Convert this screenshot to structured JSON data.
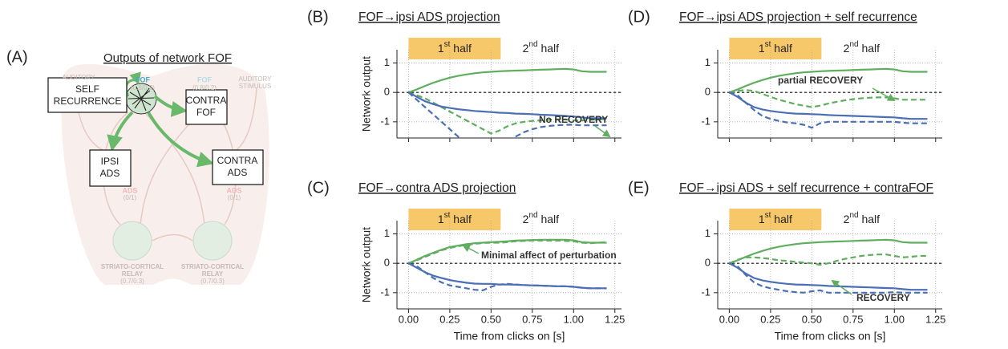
{
  "diagram": {
    "panel_label": "(A)",
    "title": "Outputs of network FOF",
    "boxes": [
      "SELF",
      "RECURRENCE",
      "CONTRA",
      "FOF",
      "IPSI",
      "ADS",
      "CONTRA",
      "ADS"
    ],
    "faded_labels": [
      "FOF",
      "(0.8/0.2)",
      "FOF",
      "(0.8/0.2)",
      "AUDITORY",
      "AUDITORY",
      "STIMULUS",
      "ADS",
      "(0/1)",
      "ADS",
      "(0/1)",
      "STRIATO-CORTICAL",
      "RELAY",
      "(0.7/0.3)",
      "STRIATO-CORTICAL",
      "RELAY",
      "(0.7/0.3)"
    ]
  },
  "chart_data": [
    {
      "type": "line",
      "panel_label": "(B)",
      "title": "FOF→ipsi ADS projection",
      "ylabel": "Network output",
      "first_half": {
        "number": "1",
        "suffix": "st",
        "word": " half"
      },
      "second_half": {
        "number": "2",
        "suffix": "nd",
        "word": " half"
      },
      "half_split": 0.5,
      "annotation": "No RECOVERY",
      "show_xtick_labels": false,
      "zero_line": true,
      "grid": true,
      "xlim": [
        -0.07,
        1.29
      ],
      "ylim": [
        -1.55,
        1.45
      ],
      "xticks": [
        {
          "value": 0,
          "label": "0.00"
        },
        {
          "value": 0.25,
          "label": "0.25"
        },
        {
          "value": 0.5,
          "label": "0.50"
        },
        {
          "value": 0.75,
          "label": "0.75"
        },
        {
          "value": 1,
          "label": "1.00"
        },
        {
          "value": 1.25,
          "label": "1.25"
        }
      ],
      "yticks": [
        -1,
        0,
        1
      ],
      "x": [
        0,
        0.05,
        0.1,
        0.15,
        0.2,
        0.25,
        0.3,
        0.35,
        0.4,
        0.45,
        0.5,
        0.55,
        0.6,
        0.65,
        0.7,
        0.75,
        0.8,
        0.85,
        0.9,
        0.95,
        1,
        1.05,
        1.1,
        1.15,
        1.2
      ],
      "series": [
        {
          "color": "#5fae5f",
          "dash": false,
          "values": [
            0,
            0.1,
            0.22,
            0.33,
            0.42,
            0.5,
            0.56,
            0.61,
            0.65,
            0.68,
            0.7,
            0.72,
            0.73,
            0.74,
            0.75,
            0.76,
            0.77,
            0.78,
            0.79,
            0.8,
            0.78,
            0.72,
            0.7,
            0.7,
            0.7
          ]
        },
        {
          "color": "#5fae5f",
          "dash": true,
          "values": [
            0,
            -0.1,
            -0.2,
            -0.35,
            -0.5,
            -0.65,
            -0.8,
            -0.95,
            -1.1,
            -1.25,
            -1.4,
            -1.3,
            -1.15,
            -1.05,
            -1.0,
            -0.97,
            -0.95,
            -0.93,
            -0.92,
            -0.92,
            -0.95,
            -0.95,
            -0.93,
            -0.92,
            -0.9
          ]
        },
        {
          "color": "#4a6fb5",
          "dash": false,
          "values": [
            0,
            -0.15,
            -0.3,
            -0.4,
            -0.48,
            -0.53,
            -0.57,
            -0.6,
            -0.63,
            -0.65,
            -0.67,
            -0.69,
            -0.7,
            -0.72,
            -0.73,
            -0.74,
            -0.76,
            -0.77,
            -0.78,
            -0.8,
            -0.82,
            -0.85,
            -0.88,
            -0.88,
            -0.88
          ]
        },
        {
          "color": "#4a6fb5",
          "dash": true,
          "values": [
            0,
            -0.25,
            -0.5,
            -0.75,
            -1.0,
            -1.25,
            -1.5,
            -1.7,
            -1.9,
            -2.0,
            -2.0,
            -1.9,
            -1.7,
            -1.5,
            -1.35,
            -1.25,
            -1.18,
            -1.14,
            -1.12,
            -1.1,
            -1.1,
            -1.12,
            -1.12,
            -1.12,
            -1.12
          ]
        }
      ]
    },
    {
      "type": "line",
      "panel_label": "(C)",
      "title": "FOF→contra ADS projection",
      "ylabel": "Network output",
      "xlabel": "Time from clicks on [s]",
      "first_half": {
        "number": "1",
        "suffix": "st",
        "word": " half"
      },
      "second_half": {
        "number": "2",
        "suffix": "nd",
        "word": " half"
      },
      "half_split": 0.5,
      "annotation": "Minimal affect of perturbation",
      "show_xtick_labels": true,
      "zero_line": true,
      "grid": true,
      "xlim": [
        -0.07,
        1.29
      ],
      "ylim": [
        -1.55,
        1.45
      ],
      "xticks": [
        {
          "value": 0,
          "label": "0.00"
        },
        {
          "value": 0.25,
          "label": "0.25"
        },
        {
          "value": 0.5,
          "label": "0.50"
        },
        {
          "value": 0.75,
          "label": "0.75"
        },
        {
          "value": 1,
          "label": "1.00"
        },
        {
          "value": 1.25,
          "label": "1.25"
        }
      ],
      "yticks": [
        -1,
        0,
        1
      ],
      "x": [
        0,
        0.05,
        0.1,
        0.15,
        0.2,
        0.25,
        0.3,
        0.35,
        0.4,
        0.45,
        0.5,
        0.55,
        0.6,
        0.65,
        0.7,
        0.75,
        0.8,
        0.85,
        0.9,
        0.95,
        1,
        1.05,
        1.1,
        1.15,
        1.2
      ],
      "series": [
        {
          "color": "#5fae5f",
          "dash": false,
          "values": [
            0,
            0.12,
            0.25,
            0.36,
            0.46,
            0.55,
            0.6,
            0.65,
            0.68,
            0.7,
            0.72,
            0.73,
            0.75,
            0.77,
            0.78,
            0.79,
            0.8,
            0.8,
            0.8,
            0.8,
            0.78,
            0.72,
            0.7,
            0.7,
            0.7
          ]
        },
        {
          "color": "#5fae5f",
          "dash": true,
          "values": [
            0,
            0.1,
            0.22,
            0.33,
            0.44,
            0.52,
            0.58,
            0.63,
            0.66,
            0.69,
            0.7,
            0.7,
            0.72,
            0.75,
            0.76,
            0.77,
            0.77,
            0.77,
            0.77,
            0.76,
            0.75,
            0.7,
            0.68,
            0.7,
            0.72
          ]
        },
        {
          "color": "#4a6fb5",
          "dash": false,
          "values": [
            0,
            -0.15,
            -0.3,
            -0.42,
            -0.5,
            -0.57,
            -0.62,
            -0.66,
            -0.69,
            -0.7,
            -0.7,
            -0.72,
            -0.72,
            -0.73,
            -0.74,
            -0.75,
            -0.76,
            -0.77,
            -0.78,
            -0.78,
            -0.8,
            -0.83,
            -0.85,
            -0.85,
            -0.85
          ]
        },
        {
          "color": "#4a6fb5",
          "dash": true,
          "values": [
            0,
            -0.1,
            -0.3,
            -0.5,
            -0.65,
            -0.75,
            -0.8,
            -0.85,
            -0.9,
            -0.92,
            -0.8,
            -0.72,
            -0.7,
            -0.72,
            -0.74,
            -0.75,
            -0.76,
            -0.77,
            -0.78,
            -0.78,
            -0.8,
            -0.83,
            -0.85,
            -0.85,
            -0.85
          ]
        }
      ]
    },
    {
      "type": "line",
      "panel_label": "(D)",
      "title": "FOF→ipsi ADS projection + self recurrence",
      "first_half": {
        "number": "1",
        "suffix": "st",
        "word": " half"
      },
      "second_half": {
        "number": "2",
        "suffix": "nd",
        "word": " half"
      },
      "half_split": 0.5,
      "annotation": "partial RECOVERY",
      "show_xtick_labels": false,
      "zero_line": true,
      "grid": true,
      "xlim": [
        -0.07,
        1.29
      ],
      "ylim": [
        -1.55,
        1.45
      ],
      "xticks": [
        {
          "value": 0,
          "label": "0.00"
        },
        {
          "value": 0.25,
          "label": "0.25"
        },
        {
          "value": 0.5,
          "label": "0.50"
        },
        {
          "value": 0.75,
          "label": "0.75"
        },
        {
          "value": 1,
          "label": "1.00"
        },
        {
          "value": 1.25,
          "label": "1.25"
        }
      ],
      "yticks": [
        -1,
        0,
        1
      ],
      "x": [
        0,
        0.05,
        0.1,
        0.15,
        0.2,
        0.25,
        0.3,
        0.35,
        0.4,
        0.45,
        0.5,
        0.55,
        0.6,
        0.65,
        0.7,
        0.75,
        0.8,
        0.85,
        0.9,
        0.95,
        1,
        1.05,
        1.1,
        1.15,
        1.2
      ],
      "series": [
        {
          "color": "#5fae5f",
          "dash": false,
          "values": [
            0,
            0.1,
            0.22,
            0.33,
            0.42,
            0.5,
            0.56,
            0.61,
            0.65,
            0.68,
            0.7,
            0.72,
            0.73,
            0.74,
            0.75,
            0.76,
            0.77,
            0.78,
            0.79,
            0.8,
            0.78,
            0.72,
            0.7,
            0.7,
            0.7
          ]
        },
        {
          "color": "#5fae5f",
          "dash": true,
          "values": [
            0,
            0.05,
            0.08,
            0.05,
            -0.05,
            -0.15,
            -0.25,
            -0.32,
            -0.4,
            -0.45,
            -0.5,
            -0.45,
            -0.38,
            -0.32,
            -0.27,
            -0.23,
            -0.2,
            -0.18,
            -0.17,
            -0.17,
            -0.2,
            -0.25,
            -0.25,
            -0.25,
            -0.25
          ]
        },
        {
          "color": "#4a6fb5",
          "dash": false,
          "values": [
            0,
            -0.15,
            -0.35,
            -0.5,
            -0.58,
            -0.63,
            -0.67,
            -0.7,
            -0.72,
            -0.73,
            -0.74,
            -0.75,
            -0.77,
            -0.78,
            -0.79,
            -0.8,
            -0.81,
            -0.82,
            -0.83,
            -0.84,
            -0.85,
            -0.88,
            -0.9,
            -0.9,
            -0.9
          ]
        },
        {
          "color": "#4a6fb5",
          "dash": true,
          "values": [
            0,
            -0.1,
            -0.35,
            -0.6,
            -0.8,
            -0.9,
            -0.97,
            -1.02,
            -1.05,
            -1.1,
            -1.2,
            -1.05,
            -1.0,
            -1.0,
            -1.0,
            -1.0,
            -1.0,
            -1.0,
            -1.0,
            -1.0,
            -1.0,
            -1.03,
            -1.05,
            -1.05,
            -1.05
          ]
        }
      ]
    },
    {
      "type": "line",
      "panel_label": "(E)",
      "title": "FOF→ipsi ADS + self recurrence + contraFOF",
      "xlabel": "Time from clicks on [s]",
      "first_half": {
        "number": "1",
        "suffix": "st",
        "word": " half"
      },
      "second_half": {
        "number": "2",
        "suffix": "nd",
        "word": " half"
      },
      "half_split": 0.5,
      "annotation": "RECOVERY",
      "show_xtick_labels": true,
      "zero_line": true,
      "grid": true,
      "xlim": [
        -0.07,
        1.29
      ],
      "ylim": [
        -1.55,
        1.45
      ],
      "xticks": [
        {
          "value": 0,
          "label": "0.00"
        },
        {
          "value": 0.25,
          "label": "0.25"
        },
        {
          "value": 0.5,
          "label": "0.50"
        },
        {
          "value": 0.75,
          "label": "0.75"
        },
        {
          "value": 1,
          "label": "1.00"
        },
        {
          "value": 1.25,
          "label": "1.25"
        }
      ],
      "yticks": [
        -1,
        0,
        1
      ],
      "x": [
        0,
        0.05,
        0.1,
        0.15,
        0.2,
        0.25,
        0.3,
        0.35,
        0.4,
        0.45,
        0.5,
        0.55,
        0.6,
        0.65,
        0.7,
        0.75,
        0.8,
        0.85,
        0.9,
        0.95,
        1,
        1.05,
        1.1,
        1.15,
        1.2
      ],
      "series": [
        {
          "color": "#5fae5f",
          "dash": false,
          "values": [
            0,
            0.1,
            0.22,
            0.33,
            0.42,
            0.5,
            0.56,
            0.61,
            0.65,
            0.68,
            0.7,
            0.72,
            0.73,
            0.74,
            0.75,
            0.76,
            0.77,
            0.78,
            0.79,
            0.8,
            0.78,
            0.72,
            0.7,
            0.7,
            0.7
          ]
        },
        {
          "color": "#5fae5f",
          "dash": true,
          "values": [
            0,
            0.12,
            0.2,
            0.2,
            0.18,
            0.15,
            0.1,
            0.08,
            0.05,
            0.02,
            0,
            -0.05,
            0,
            0.08,
            0.15,
            0.2,
            0.25,
            0.28,
            0.3,
            0.3,
            0.25,
            0.2,
            0.22,
            0.25,
            0.25
          ]
        },
        {
          "color": "#4a6fb5",
          "dash": false,
          "values": [
            0,
            -0.15,
            -0.35,
            -0.5,
            -0.58,
            -0.63,
            -0.67,
            -0.7,
            -0.72,
            -0.73,
            -0.74,
            -0.75,
            -0.77,
            -0.78,
            -0.79,
            -0.8,
            -0.81,
            -0.82,
            -0.83,
            -0.84,
            -0.85,
            -0.88,
            -0.9,
            -0.9,
            -0.9
          ]
        },
        {
          "color": "#4a6fb5",
          "dash": true,
          "values": [
            0,
            -0.1,
            -0.4,
            -0.65,
            -0.78,
            -0.85,
            -0.9,
            -0.95,
            -0.98,
            -1.0,
            -0.95,
            -0.92,
            -1.0,
            -1.0,
            -1.0,
            -1.0,
            -1.0,
            -1.0,
            -1.0,
            -1.0,
            -0.98,
            -1.0,
            -1.0,
            -1.0,
            -1.0
          ]
        }
      ]
    }
  ]
}
